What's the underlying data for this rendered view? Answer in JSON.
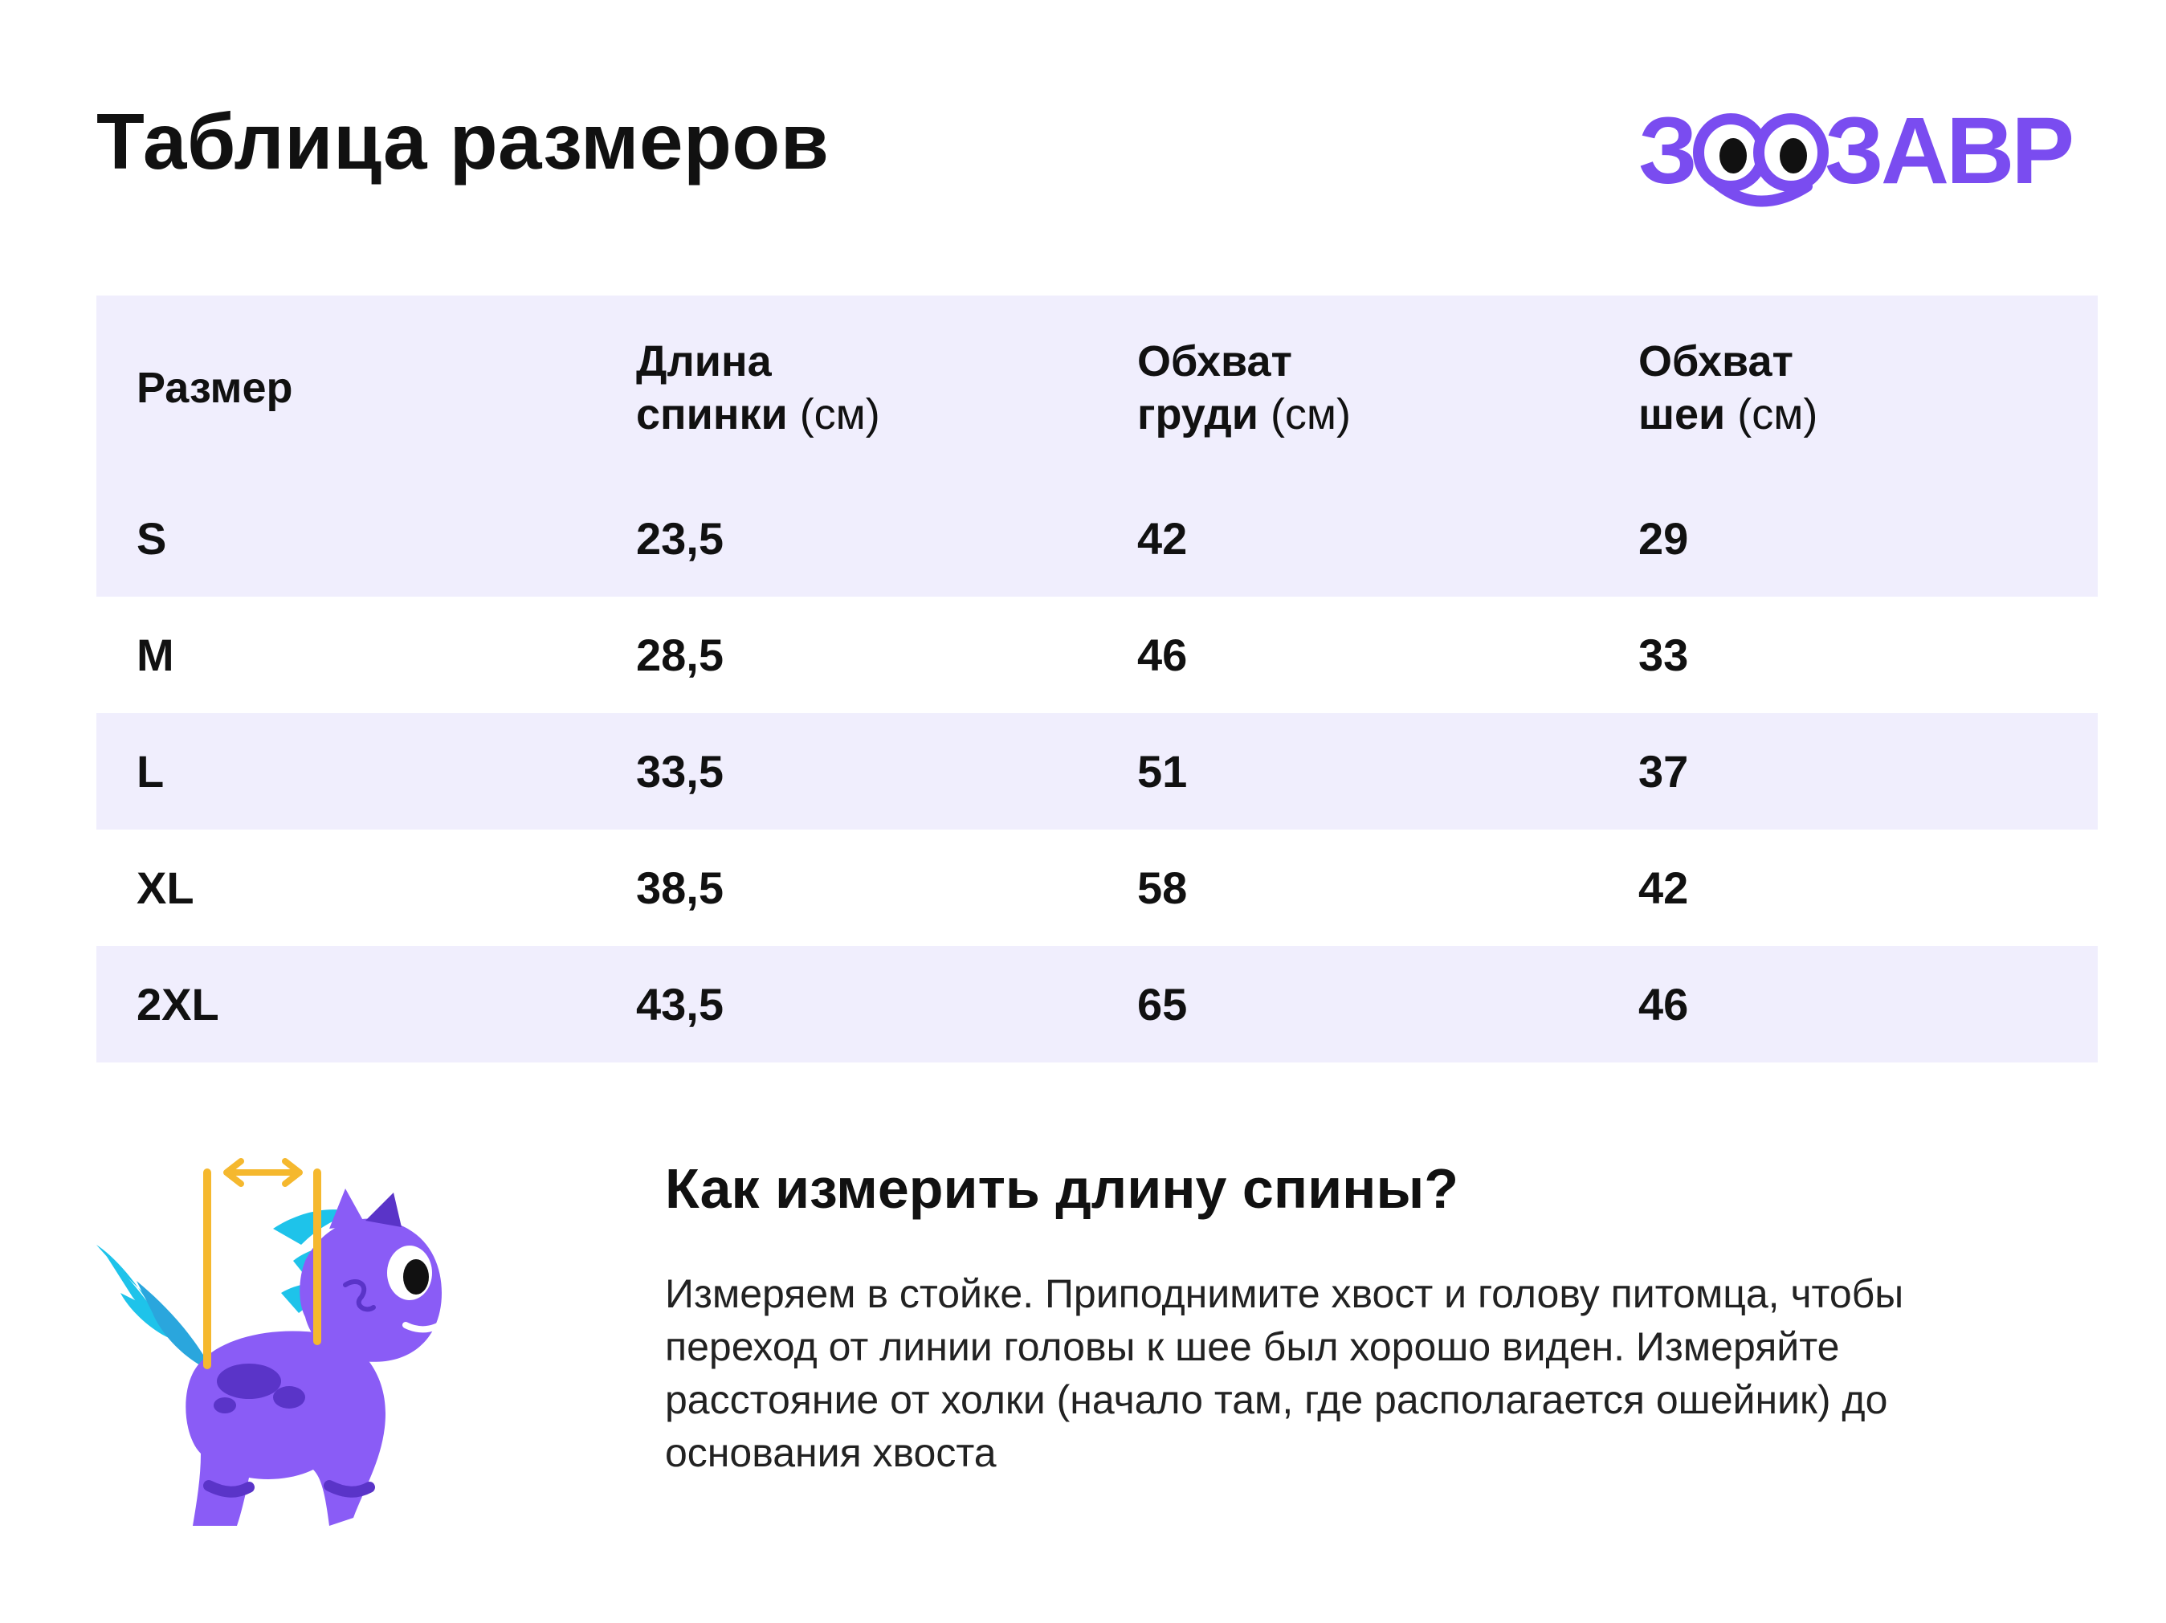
{
  "page": {
    "title": "Таблица размеров"
  },
  "brand": {
    "logo_text": "ЗООЗАВР",
    "accent_color": "#7a4cf0",
    "row_shade_color": "#f0eefd"
  },
  "table": {
    "headers": [
      {
        "label": "Размер",
        "label_line2": "",
        "unit": ""
      },
      {
        "label": "Длина",
        "label_line2": "спинки",
        "unit": "(см)"
      },
      {
        "label": "Обхват",
        "label_line2": "груди",
        "unit": "(см)"
      },
      {
        "label": "Обхват",
        "label_line2": "шеи",
        "unit": "(см)"
      }
    ],
    "rows": [
      {
        "size": "S",
        "back_length": "23,5",
        "chest": "42",
        "neck": "29"
      },
      {
        "size": "M",
        "back_length": "28,5",
        "chest": "46",
        "neck": "33"
      },
      {
        "size": "L",
        "back_length": "33,5",
        "chest": "51",
        "neck": "37"
      },
      {
        "size": "XL",
        "back_length": "38,5",
        "chest": "58",
        "neck": "42"
      },
      {
        "size": "2XL",
        "back_length": "43,5",
        "chest": "65",
        "neck": "46"
      }
    ]
  },
  "measure": {
    "title": "Как измерить длину спины?",
    "text": "Измеряем в стойке. Приподнимите хвост и голову питомца, чтобы переход от линии головы к шее был хорошо виден. Измеряйте расстояние от холки (начало там, где располагается ошейник) до основания хвоста"
  },
  "illustration": {
    "icon": "dino-mascot-icon",
    "colors": {
      "body": "#8a5cf6",
      "spikes": "#1ec3ea",
      "ruler": "#f5b82e",
      "spots": "#5a34c8"
    }
  }
}
